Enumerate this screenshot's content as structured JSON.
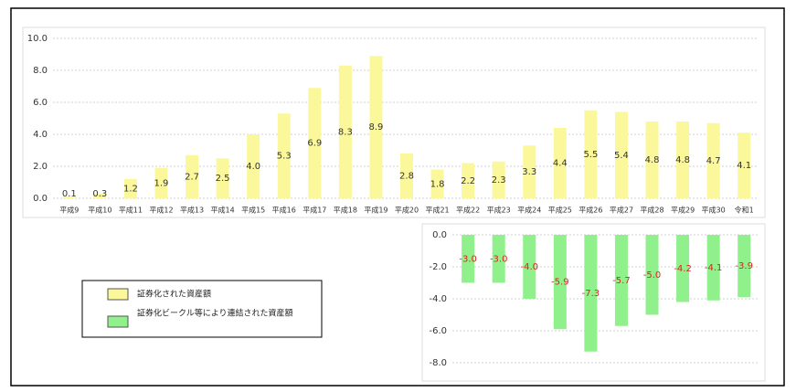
{
  "chart_data": [
    {
      "type": "bar",
      "categories": [
        "平成9",
        "平成10",
        "平成11",
        "平成12",
        "平成13",
        "平成14",
        "平成15",
        "平成16",
        "平成17",
        "平成18",
        "平成19",
        "平成20",
        "平成21",
        "平成22",
        "平成23",
        "平成24",
        "平成25",
        "平成26",
        "平成27",
        "平成28",
        "平成29",
        "平成30",
        "令和1"
      ],
      "series": [
        {
          "name": "証券化された資産額",
          "color": "#fbf89c",
          "values": [
            0.1,
            0.3,
            1.2,
            1.9,
            2.7,
            2.5,
            4.0,
            5.3,
            6.9,
            8.3,
            8.9,
            2.8,
            1.8,
            2.2,
            2.3,
            3.3,
            4.4,
            5.5,
            5.4,
            4.8,
            4.8,
            4.7,
            4.1
          ],
          "value_labels": [
            "0.1",
            "0.3",
            "1.2",
            "1.9",
            "2.7",
            "2.5",
            "4.0",
            "5.3",
            "6.9",
            "8.3",
            "8.9",
            "2.8",
            "1.8",
            "2.2",
            "2.3",
            "3.3",
            "4.4",
            "5.5",
            "5.4",
            "4.8",
            "4.8",
            "4.7",
            "4.1"
          ]
        }
      ],
      "ylim": [
        0,
        10
      ],
      "yticks": [
        {
          "value": 0,
          "label": "0.0"
        },
        {
          "value": 2,
          "label": "2.0"
        },
        {
          "value": 4,
          "label": "4.0"
        },
        {
          "value": 6,
          "label": "6.0"
        },
        {
          "value": 8,
          "label": "8.0"
        },
        {
          "value": 10,
          "label": "10.0"
        }
      ],
      "grid": true
    },
    {
      "type": "bar",
      "series": [
        {
          "name": "証券化ビークル等により連結された資産額",
          "color": "#8ff08c",
          "values": [
            -3.0,
            -3.0,
            -4.0,
            -5.9,
            -7.3,
            -5.7,
            -5.0,
            -4.2,
            -4.1,
            -3.9
          ],
          "value_labels": [
            "-3.0",
            "-3.0",
            "-4.0",
            "-5.9",
            "-7.3",
            "-5.7",
            "-5.0",
            "-4.2",
            "-4.1",
            "-3.9"
          ]
        }
      ],
      "ylim": [
        -9,
        0
      ],
      "yticks": [
        {
          "value": 0,
          "label": "0.0"
        },
        {
          "value": -2,
          "label": "-2.0"
        },
        {
          "value": -4,
          "label": "-4.0"
        },
        {
          "value": -6,
          "label": "-6.0"
        },
        {
          "value": -8,
          "label": "-8.0"
        }
      ],
      "grid": true
    }
  ]
}
